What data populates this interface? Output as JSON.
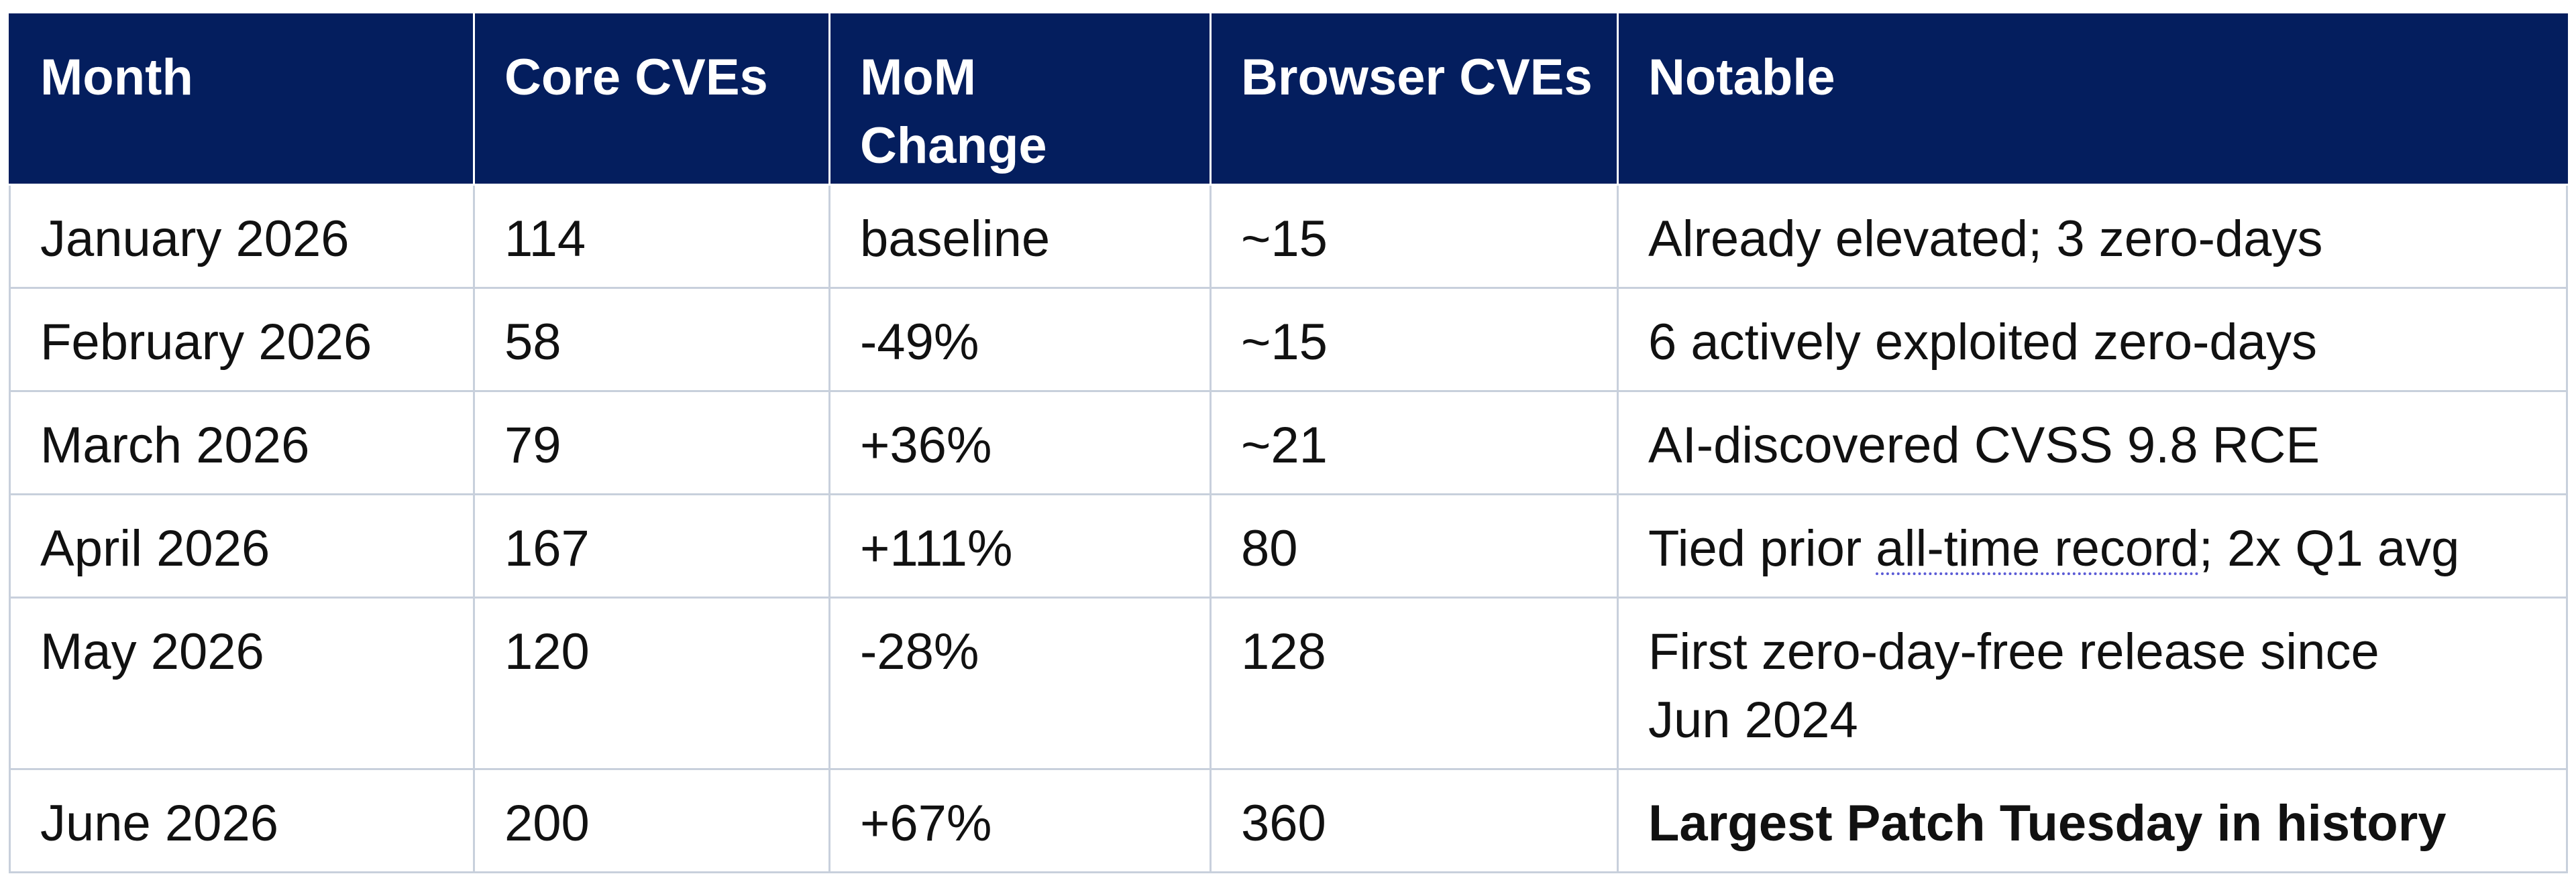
{
  "table": {
    "headers": {
      "month": "Month",
      "core_cves": "Core CVEs",
      "mom_change_line1": "MoM",
      "mom_change_line2": "Change",
      "browser_cves": "Browser CVEs",
      "notable": "Notable"
    },
    "rows": [
      {
        "month": "January 2026",
        "core_cves": "114",
        "mom_change": "baseline",
        "browser_cves": "~15",
        "notable": "Already elevated; 3 zero-days"
      },
      {
        "month": "February 2026",
        "core_cves": "58",
        "mom_change": "-49%",
        "browser_cves": "~15",
        "notable": "6 actively exploited zero-days"
      },
      {
        "month": "March 2026",
        "core_cves": "79",
        "mom_change": "+36%",
        "browser_cves": "~21",
        "notable": "AI-discovered CVSS 9.8 RCE"
      },
      {
        "month": "April 2026",
        "core_cves": "167",
        "mom_change": "+111%",
        "browser_cves": "80",
        "notable_prefix": "Tied prior ",
        "notable_link": "all-time record",
        "notable_suffix": "; 2x Q1 avg"
      },
      {
        "month": "May 2026",
        "core_cves": "120",
        "mom_change": "-28%",
        "browser_cves": "128",
        "notable_line1": "First zero-day-free release since",
        "notable_line2": "Jun 2024"
      },
      {
        "month": "June 2026",
        "core_cves": "200",
        "mom_change": "+67%",
        "browser_cves": "360",
        "notable": "Largest Patch Tuesday in history"
      }
    ]
  },
  "colors": {
    "header_background": "#041e5e",
    "header_text": "#ffffff",
    "grid_lines": "#c8d0dc",
    "body_text": "#111111"
  }
}
